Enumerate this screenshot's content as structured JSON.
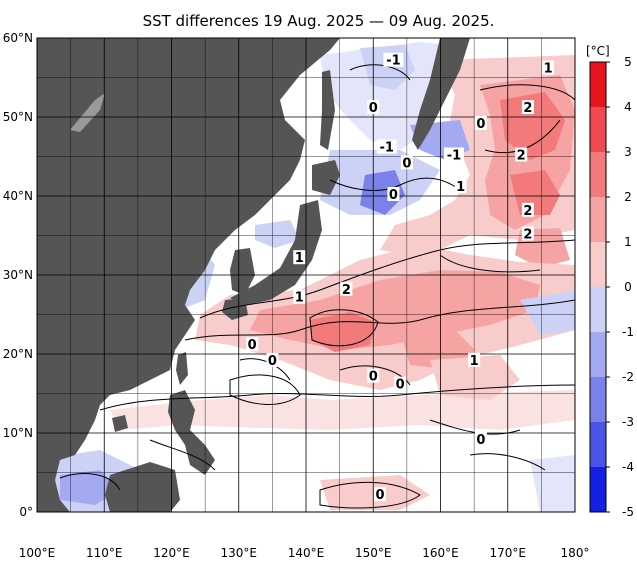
{
  "title": "SST differences 19 Aug. 2025 — 09 Aug. 2025.",
  "map": {
    "lon_min": 100,
    "lon_max": 180,
    "lat_min": 0,
    "lat_max": 60,
    "lon_ticks": [
      "100°E",
      "110°E",
      "120°E",
      "130°E",
      "140°E",
      "150°E",
      "160°E",
      "170°E",
      "180°"
    ],
    "lat_ticks": [
      "60°N",
      "50°N",
      "40°N",
      "30°N",
      "20°N",
      "10°N",
      "0°"
    ],
    "land_color": "#555555",
    "grid": true
  },
  "contour_labels": [
    {
      "text": "-1",
      "lon": 153,
      "lat": 57
    },
    {
      "text": "1",
      "lon": 176,
      "lat": 56
    },
    {
      "text": "2",
      "lon": 173,
      "lat": 51
    },
    {
      "text": "0",
      "lon": 150,
      "lat": 51
    },
    {
      "text": "0",
      "lon": 166,
      "lat": 49
    },
    {
      "text": "-1",
      "lon": 152,
      "lat": 46
    },
    {
      "text": "-1",
      "lon": 162,
      "lat": 45
    },
    {
      "text": "2",
      "lon": 172,
      "lat": 45
    },
    {
      "text": "0",
      "lon": 155,
      "lat": 44
    },
    {
      "text": "1",
      "lon": 163,
      "lat": 41
    },
    {
      "text": "0",
      "lon": 153,
      "lat": 40
    },
    {
      "text": "2",
      "lon": 173,
      "lat": 38
    },
    {
      "text": "2",
      "lon": 173,
      "lat": 35
    },
    {
      "text": "1",
      "lon": 139,
      "lat": 32
    },
    {
      "text": "2",
      "lon": 146,
      "lat": 28
    },
    {
      "text": "1",
      "lon": 139,
      "lat": 27
    },
    {
      "text": "0",
      "lon": 132,
      "lat": 21
    },
    {
      "text": "1",
      "lon": 165,
      "lat": 19
    },
    {
      "text": "0",
      "lon": 135,
      "lat": 19
    },
    {
      "text": "0",
      "lon": 150,
      "lat": 17
    },
    {
      "text": "0",
      "lon": 154,
      "lat": 16
    },
    {
      "text": "0",
      "lon": 166,
      "lat": 9
    },
    {
      "text": "0",
      "lon": 151,
      "lat": 2
    }
  ],
  "colorbar": {
    "unit": "[°C]",
    "ticks": [
      "5",
      "4",
      "3",
      "2",
      "1",
      "0",
      "-1",
      "-2",
      "-3",
      "-4",
      "-5"
    ],
    "stops": [
      "#e8141e",
      "#ee4a4f",
      "#f27a7a",
      "#f6a3a3",
      "#f9cccc",
      "#ffffff",
      "#ccd2f5",
      "#a3aaf0",
      "#7a82ea",
      "#4a55e8",
      "#1420e6"
    ]
  }
}
